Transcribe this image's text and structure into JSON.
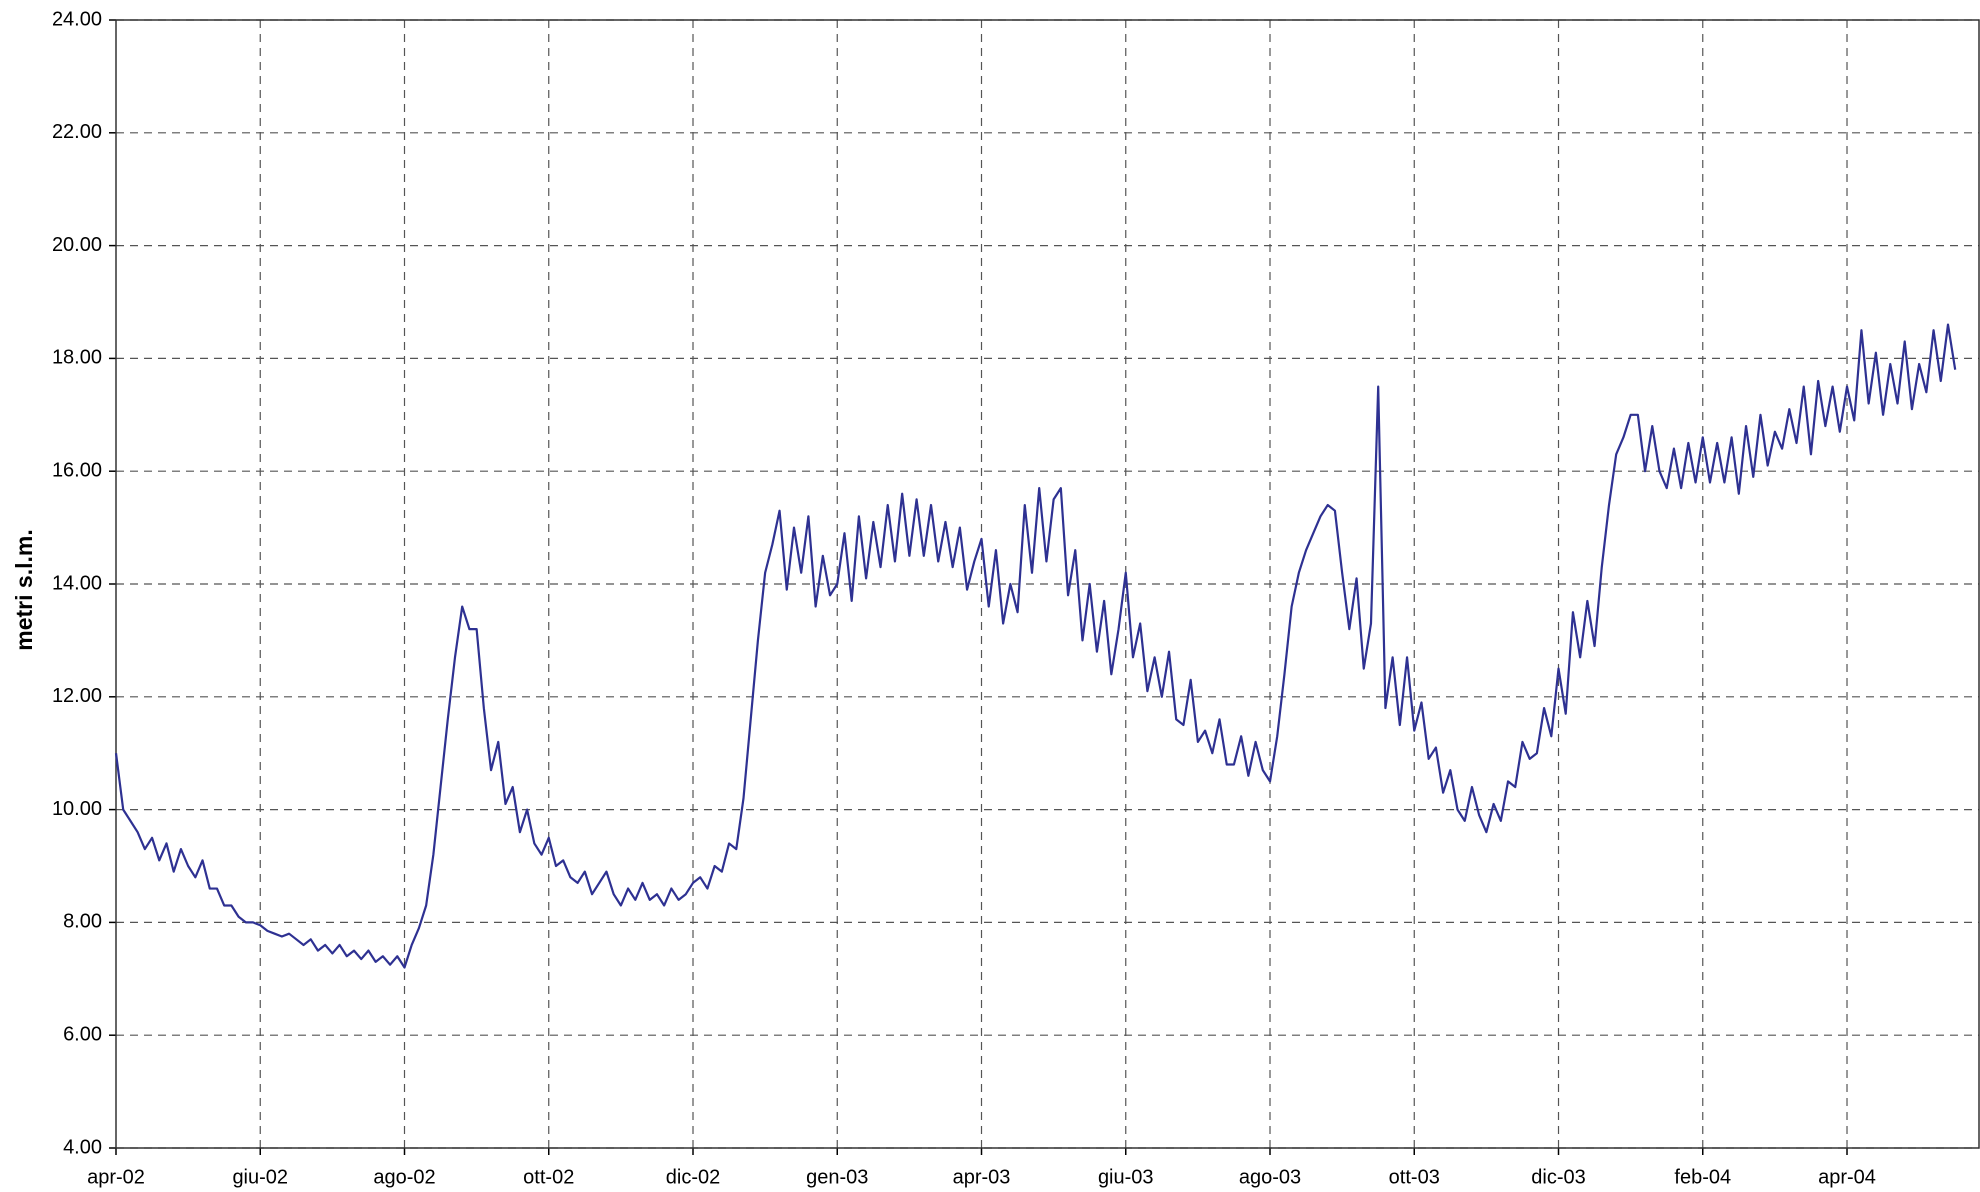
{
  "chart_data": {
    "type": "line",
    "y_label": "metri s.l.m.",
    "categories": [
      "apr-02",
      null,
      null,
      null,
      null,
      null,
      null,
      null,
      null,
      null,
      null,
      null,
      null,
      null,
      null,
      null,
      null,
      null,
      null,
      null,
      "giu-02",
      null,
      null,
      null,
      null,
      null,
      null,
      null,
      null,
      null,
      null,
      null,
      null,
      null,
      null,
      null,
      null,
      null,
      null,
      null,
      "ago-02",
      null,
      null,
      null,
      null,
      null,
      null,
      null,
      null,
      null,
      null,
      null,
      null,
      null,
      null,
      null,
      null,
      null,
      null,
      null,
      "ott-02",
      null,
      null,
      null,
      null,
      null,
      null,
      null,
      null,
      null,
      null,
      null,
      null,
      null,
      null,
      null,
      null,
      null,
      null,
      null,
      "dic-02",
      null,
      null,
      null,
      null,
      null,
      null,
      null,
      null,
      null,
      null,
      null,
      null,
      null,
      null,
      null,
      null,
      null,
      null,
      null,
      "gen-03",
      null,
      null,
      null,
      null,
      null,
      null,
      null,
      null,
      null,
      null,
      null,
      null,
      null,
      null,
      null,
      null,
      null,
      null,
      null,
      "apr-03",
      null,
      null,
      null,
      null,
      null,
      null,
      null,
      null,
      null,
      null,
      null,
      null,
      null,
      null,
      null,
      null,
      null,
      null,
      null,
      "giu-03",
      null,
      null,
      null,
      null,
      null,
      null,
      null,
      null,
      null,
      null,
      null,
      null,
      null,
      null,
      null,
      null,
      null,
      null,
      null,
      "ago-03",
      null,
      null,
      null,
      null,
      null,
      null,
      null,
      null,
      null,
      null,
      null,
      null,
      null,
      null,
      null,
      null,
      null,
      null,
      null,
      "ott-03",
      null,
      null,
      null,
      null,
      null,
      null,
      null,
      null,
      null,
      null,
      null,
      null,
      null,
      null,
      null,
      null,
      null,
      null,
      null,
      "dic-03",
      null,
      null,
      null,
      null,
      null,
      null,
      null,
      null,
      null,
      null,
      null,
      null,
      null,
      null,
      null,
      null,
      null,
      null,
      null,
      "feb-04",
      null,
      null,
      null,
      null,
      null,
      null,
      null,
      null,
      null,
      null,
      null,
      null,
      null,
      null,
      null,
      null,
      null,
      null,
      null,
      "apr-04",
      null,
      null,
      null,
      null,
      null,
      null,
      null,
      null,
      null,
      null,
      null,
      null,
      null,
      null,
      null
    ],
    "series": [
      {
        "color": "#2e3192",
        "values": [
          11.0,
          10.0,
          9.8,
          9.6,
          9.3,
          9.5,
          9.1,
          9.4,
          8.9,
          9.3,
          9.0,
          8.8,
          9.1,
          8.6,
          8.6,
          8.3,
          8.3,
          8.1,
          8.0,
          8.0,
          7.95,
          7.85,
          7.8,
          7.75,
          7.8,
          7.7,
          7.6,
          7.7,
          7.5,
          7.6,
          7.45,
          7.6,
          7.4,
          7.5,
          7.35,
          7.5,
          7.3,
          7.4,
          7.25,
          7.4,
          7.2,
          7.6,
          7.9,
          8.3,
          9.2,
          10.4,
          11.6,
          12.7,
          13.6,
          13.2,
          13.2,
          11.8,
          10.7,
          11.2,
          10.1,
          10.4,
          9.6,
          10.0,
          9.4,
          9.2,
          9.5,
          9.0,
          9.1,
          8.8,
          8.7,
          8.9,
          8.5,
          8.7,
          8.9,
          8.5,
          8.3,
          8.6,
          8.4,
          8.7,
          8.4,
          8.5,
          8.3,
          8.6,
          8.4,
          8.5,
          8.7,
          8.8,
          8.6,
          9.0,
          8.9,
          9.4,
          9.3,
          10.2,
          11.6,
          13.0,
          14.2,
          14.7,
          15.3,
          13.9,
          15.0,
          14.2,
          15.2,
          13.6,
          14.5,
          13.8,
          14.0,
          14.9,
          13.7,
          15.2,
          14.1,
          15.1,
          14.3,
          15.4,
          14.4,
          15.6,
          14.5,
          15.5,
          14.5,
          15.4,
          14.4,
          15.1,
          14.3,
          15.0,
          13.9,
          14.4,
          14.8,
          13.6,
          14.6,
          13.3,
          14.0,
          13.5,
          15.4,
          14.2,
          15.7,
          14.4,
          15.5,
          15.7,
          13.8,
          14.6,
          13.0,
          14.0,
          12.8,
          13.7,
          12.4,
          13.2,
          14.2,
          12.7,
          13.3,
          12.1,
          12.7,
          12.0,
          12.8,
          11.6,
          11.5,
          12.3,
          11.2,
          11.4,
          11.0,
          11.6,
          10.8,
          10.8,
          11.3,
          10.6,
          11.2,
          10.7,
          10.5,
          11.3,
          12.4,
          13.6,
          14.2,
          14.6,
          14.9,
          15.2,
          15.4,
          15.3,
          14.2,
          13.2,
          14.1,
          12.5,
          13.3,
          17.5,
          11.8,
          12.7,
          11.5,
          12.7,
          11.4,
          11.9,
          10.9,
          11.1,
          10.3,
          10.7,
          10.0,
          9.8,
          10.4,
          9.9,
          9.6,
          10.1,
          9.8,
          10.5,
          10.4,
          11.2,
          10.9,
          11.0,
          11.8,
          11.3,
          12.5,
          11.7,
          13.5,
          12.7,
          13.7,
          12.9,
          14.3,
          15.4,
          16.3,
          16.6,
          17.0,
          17.0,
          16.0,
          16.8,
          16.0,
          15.7,
          16.4,
          15.7,
          16.5,
          15.8,
          16.6,
          15.8,
          16.5,
          15.8,
          16.6,
          15.6,
          16.8,
          15.9,
          17.0,
          16.1,
          16.7,
          16.4,
          17.1,
          16.5,
          17.5,
          16.3,
          17.6,
          16.8,
          17.5,
          16.7,
          17.5,
          16.9,
          18.5,
          17.2,
          18.1,
          17.0,
          17.9,
          17.2,
          18.3,
          17.1,
          17.9,
          17.4,
          18.5,
          17.6,
          18.6,
          17.8
        ]
      }
    ],
    "ylim": [
      4,
      24
    ],
    "yticks": [
      {
        "value": 4,
        "label": "4.00"
      },
      {
        "value": 6,
        "label": "6.00"
      },
      {
        "value": 8,
        "label": "8.00"
      },
      {
        "value": 10,
        "label": "10.00"
      },
      {
        "value": 12,
        "label": "12.00"
      },
      {
        "value": 14,
        "label": "14.00"
      },
      {
        "value": 16,
        "label": "16.00"
      },
      {
        "value": 18,
        "label": "18.00"
      },
      {
        "value": 20,
        "label": "20.00"
      },
      {
        "value": 22,
        "label": "22.00"
      },
      {
        "value": 24,
        "label": "24.00"
      }
    ],
    "grid": true
  }
}
